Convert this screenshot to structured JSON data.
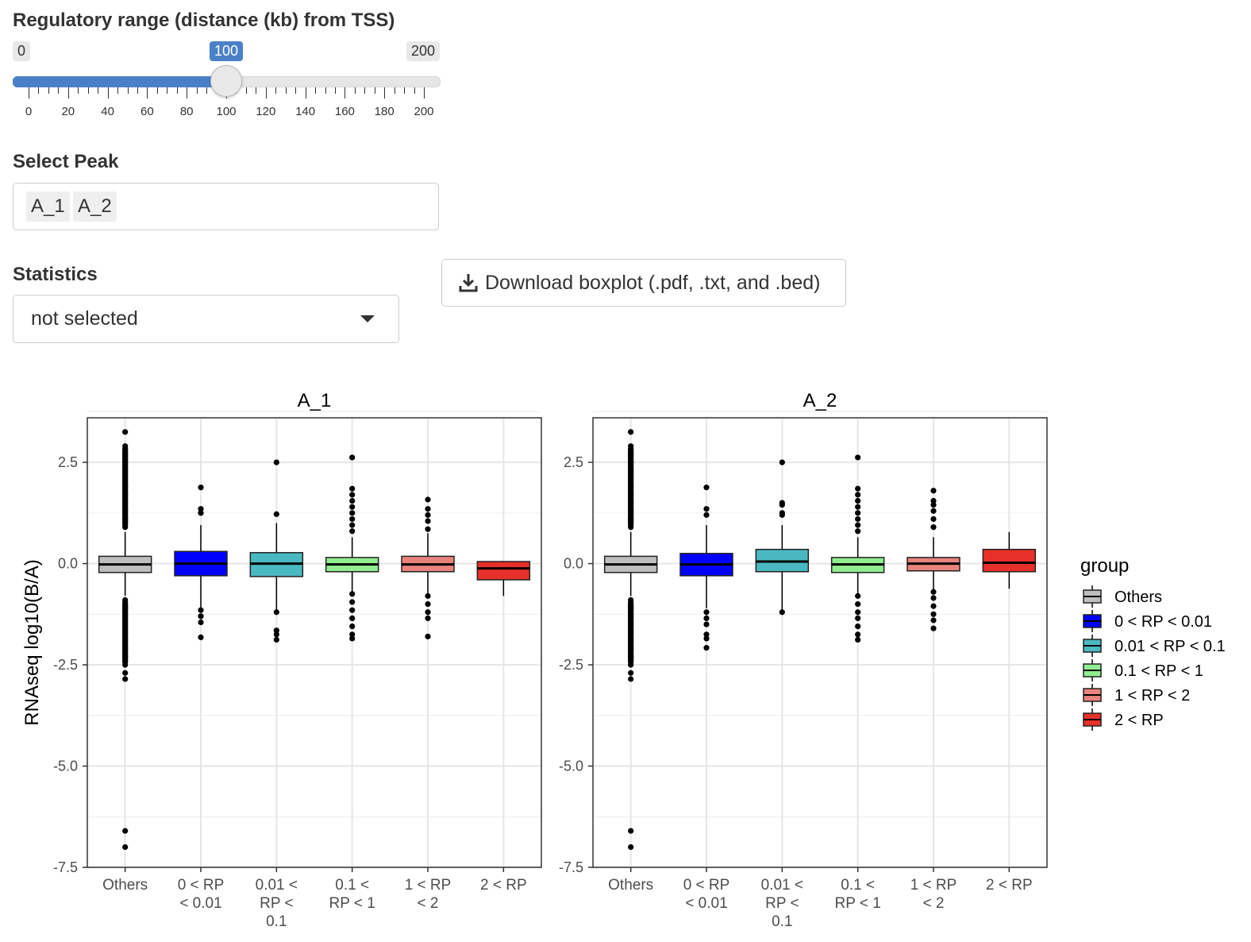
{
  "slider": {
    "label": "Regulatory range (distance (kb) from TSS)",
    "min": 0,
    "max": 200,
    "value": 100,
    "min_label": "0",
    "max_label": "200",
    "value_label": "100",
    "ticks": [
      "0",
      "20",
      "40",
      "60",
      "80",
      "100",
      "120",
      "140",
      "160",
      "180",
      "200"
    ]
  },
  "peak": {
    "label": "Select Peak",
    "selected": [
      "A_1",
      "A_2"
    ]
  },
  "stats": {
    "label": "Statistics",
    "value": "not selected"
  },
  "download": {
    "label": "Download boxplot (.pdf, .txt, and .bed)",
    "icon": "download-icon"
  },
  "chart_data": {
    "type": "boxplot",
    "ylabel": "RNAseq log10(B/A)",
    "ylim": [
      -7.5,
      3.6
    ],
    "yticks": [
      "2.5",
      "0.0",
      "-2.5",
      "-5.0",
      "-7.5"
    ],
    "grid": true,
    "categories": [
      [
        "Others"
      ],
      [
        "0 < RP",
        "< 0.01"
      ],
      [
        "0.01 <",
        "RP <",
        "0.1"
      ],
      [
        "0.1 <",
        "RP < 1"
      ],
      [
        "1 < RP",
        "< 2"
      ],
      [
        "2 < RP"
      ]
    ],
    "legend": {
      "title": "group",
      "position": "right",
      "entries": [
        "Others",
        "0 < RP < 0.01",
        "0.01 < RP < 0.1",
        "0.1 < RP < 1",
        "1 < RP < 2",
        "2 < RP"
      ],
      "colors": [
        "#bebebe",
        "#0000ff",
        "#4ab8c1",
        "#90ee90",
        "#e9827c",
        "#e8302a"
      ]
    },
    "panels": [
      {
        "title": "A_1",
        "boxes": [
          {
            "q1": -0.22,
            "median": -0.02,
            "q3": 0.18,
            "wlo": -0.8,
            "whi": 0.78,
            "outliers": [
              3.25,
              2.9,
              2.7,
              2.5,
              2.3,
              2.1,
              1.9,
              1.7,
              1.5,
              1.3,
              1.1,
              0.9,
              -0.9,
              -1.1,
              -1.3,
              -1.5,
              -1.7,
              -1.9,
              -2.1,
              -2.3,
              -2.5,
              -2.7,
              -2.85,
              -6.6,
              -7.0
            ]
          },
          {
            "q1": -0.3,
            "median": 0.0,
            "q3": 0.3,
            "wlo": -1.1,
            "whi": 0.95,
            "outliers": [
              1.88,
              1.35,
              1.25,
              -1.15,
              -1.3,
              -1.45,
              -1.82
            ]
          },
          {
            "q1": -0.32,
            "median": 0.0,
            "q3": 0.27,
            "wlo": -1.15,
            "whi": 1.0,
            "outliers": [
              2.5,
              1.22,
              -1.2,
              -1.65,
              -1.75,
              -1.88
            ]
          },
          {
            "q1": -0.2,
            "median": -0.02,
            "q3": 0.15,
            "wlo": -0.7,
            "whi": 0.65,
            "outliers": [
              2.62,
              1.85,
              1.7,
              1.55,
              1.4,
              1.25,
              1.1,
              0.95,
              0.8,
              -0.75,
              -0.95,
              -1.15,
              -1.35,
              -1.55,
              -1.75,
              -1.85
            ]
          },
          {
            "q1": -0.2,
            "median": -0.02,
            "q3": 0.18,
            "wlo": -0.75,
            "whi": 0.75,
            "outliers": [
              1.58,
              1.35,
              1.2,
              1.05,
              0.85,
              -0.8,
              -1.0,
              -1.2,
              -1.35,
              -1.8
            ]
          },
          {
            "q1": -0.4,
            "median": -0.12,
            "q3": 0.05,
            "wlo": -0.8,
            "whi": 0.05,
            "outliers": []
          }
        ]
      },
      {
        "title": "A_2",
        "boxes": [
          {
            "q1": -0.22,
            "median": -0.02,
            "q3": 0.18,
            "wlo": -0.8,
            "whi": 0.78,
            "outliers": [
              3.25,
              2.9,
              2.7,
              2.5,
              2.3,
              2.1,
              1.9,
              1.7,
              1.5,
              1.3,
              1.1,
              0.9,
              -0.9,
              -1.1,
              -1.3,
              -1.5,
              -1.7,
              -1.9,
              -2.1,
              -2.3,
              -2.5,
              -2.7,
              -2.85,
              -6.6,
              -7.0
            ]
          },
          {
            "q1": -0.3,
            "median": -0.02,
            "q3": 0.25,
            "wlo": -1.1,
            "whi": 0.95,
            "outliers": [
              1.88,
              1.35,
              1.2,
              -1.2,
              -1.35,
              -1.5,
              -1.75,
              -1.85,
              -2.08
            ]
          },
          {
            "q1": -0.2,
            "median": 0.05,
            "q3": 0.35,
            "wlo": -1.15,
            "whi": 0.95,
            "outliers": [
              2.5,
              1.5,
              1.45,
              1.25,
              1.2,
              -1.2
            ]
          },
          {
            "q1": -0.22,
            "median": -0.02,
            "q3": 0.15,
            "wlo": -0.75,
            "whi": 0.65,
            "outliers": [
              2.62,
              1.85,
              1.7,
              1.55,
              1.4,
              1.25,
              1.1,
              0.95,
              0.8,
              -0.8,
              -1.0,
              -1.2,
              -1.35,
              -1.55,
              -1.75,
              -1.88
            ]
          },
          {
            "q1": -0.18,
            "median": 0.0,
            "q3": 0.15,
            "wlo": -0.65,
            "whi": 0.65,
            "outliers": [
              1.8,
              1.55,
              1.45,
              1.3,
              1.1,
              0.9,
              -0.7,
              -0.85,
              -1.05,
              -1.25,
              -1.4,
              -1.6
            ]
          },
          {
            "q1": -0.2,
            "median": 0.02,
            "q3": 0.35,
            "wlo": -0.62,
            "whi": 0.78,
            "outliers": []
          }
        ]
      }
    ]
  }
}
